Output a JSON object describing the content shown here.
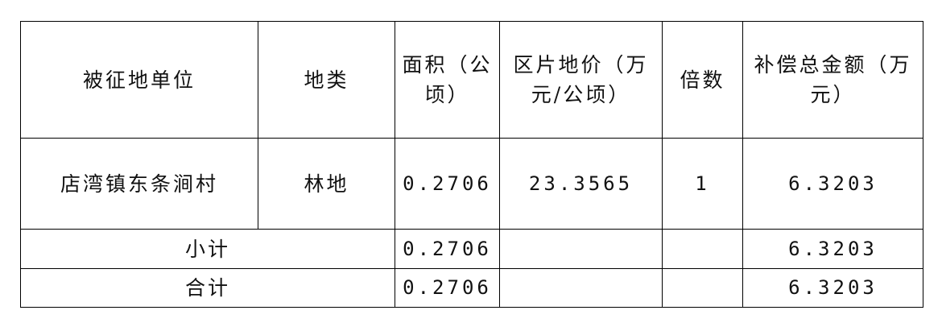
{
  "table": {
    "headers": [
      "被征地单位",
      "地类",
      "面积（公顷）",
      "区片地价（万元/公顷）",
      "倍数",
      "补偿总金额（万元）"
    ],
    "rows": [
      {
        "unit": "店湾镇东条涧村",
        "type": "林地",
        "area": "0.2706",
        "price": "23.3565",
        "multiple": "1",
        "total": "6.3203"
      }
    ],
    "subtotal": {
      "label": "小计",
      "area": "0.2706",
      "total": "6.3203"
    },
    "grand_total": {
      "label": "合计",
      "area": "0.2706",
      "total": "6.3203"
    }
  }
}
